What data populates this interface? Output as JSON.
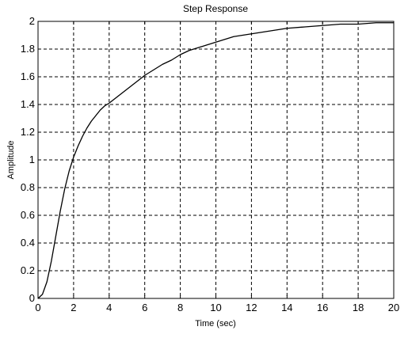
{
  "chart_data": {
    "type": "line",
    "title": "Step Response",
    "xlabel": "Time (sec)",
    "ylabel": "Amplitude",
    "xlim": [
      0,
      20
    ],
    "ylim": [
      0,
      2
    ],
    "xticks": [
      "0",
      "2",
      "4",
      "6",
      "8",
      "10",
      "12",
      "14",
      "16",
      "18",
      "20"
    ],
    "yticks": [
      "0",
      "0.2",
      "0.4",
      "0.6",
      "0.8",
      "1",
      "1.2",
      "1.4",
      "1.6",
      "1.8",
      "2"
    ],
    "grid": true,
    "grid_style": "dashed",
    "series": [
      {
        "color": "#000000",
        "x": [
          0,
          0.25,
          0.5,
          0.75,
          1.0,
          1.25,
          1.5,
          1.75,
          2.0,
          2.25,
          2.5,
          2.75,
          3.0,
          3.25,
          3.5,
          3.75,
          4.0,
          4.5,
          5.0,
          5.5,
          6.0,
          6.5,
          7.0,
          7.5,
          8.0,
          8.5,
          9.0,
          9.5,
          10.0,
          11.0,
          12.0,
          13.0,
          14.0,
          15.0,
          16.0,
          17.0,
          18.0,
          19.0,
          20.0
        ],
        "y": [
          0,
          0.03,
          0.12,
          0.27,
          0.45,
          0.63,
          0.79,
          0.92,
          1.02,
          1.1,
          1.17,
          1.23,
          1.28,
          1.32,
          1.36,
          1.39,
          1.41,
          1.46,
          1.51,
          1.56,
          1.61,
          1.65,
          1.69,
          1.72,
          1.76,
          1.79,
          1.81,
          1.83,
          1.85,
          1.89,
          1.91,
          1.93,
          1.95,
          1.96,
          1.97,
          1.98,
          1.98,
          1.99,
          1.99
        ]
      }
    ]
  }
}
